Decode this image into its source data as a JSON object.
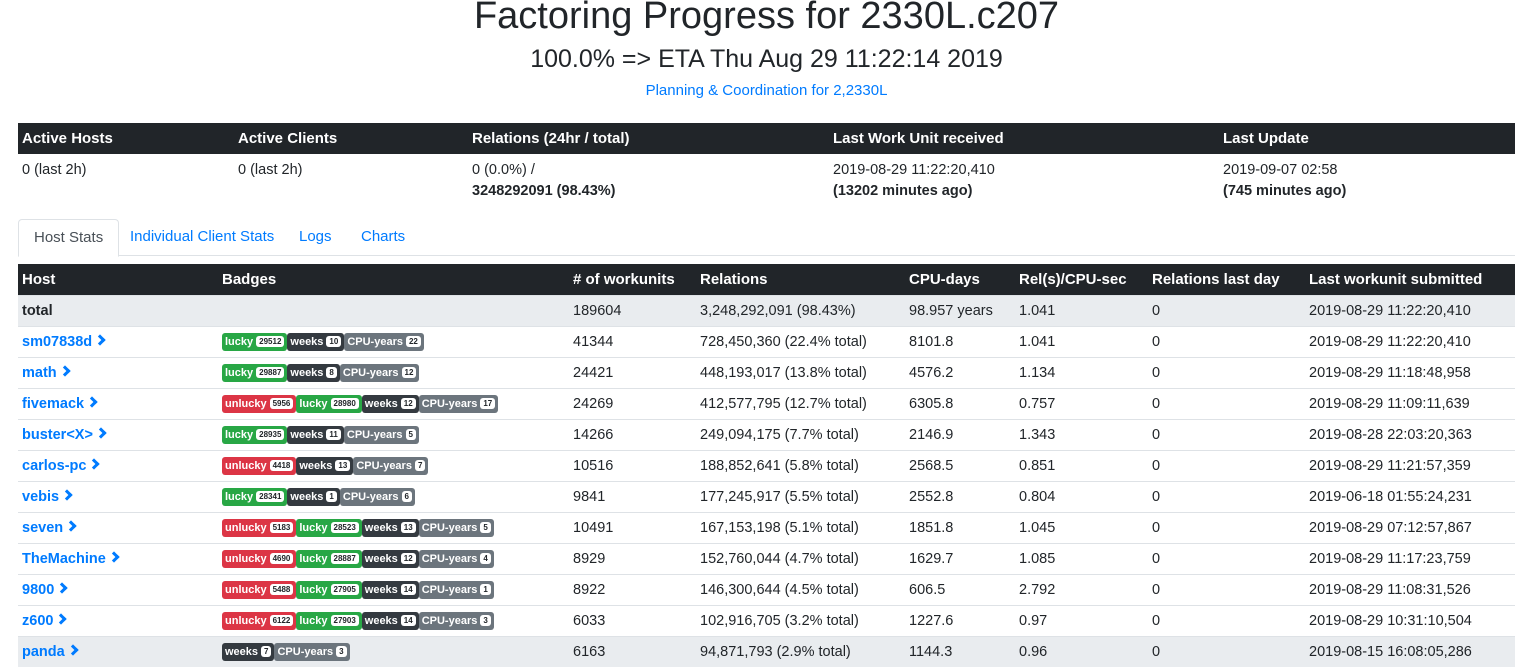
{
  "header": {
    "title": "Factoring Progress for 2330L.c207",
    "subtitle": "100.0% => ETA Thu Aug 29 11:22:14 2019",
    "link": "Planning & Coordination for 2,2330L"
  },
  "summary": {
    "headers": [
      "Active Hosts",
      "Active Clients",
      "Relations (24hr / total)",
      "Last Work Unit received",
      "Last Update"
    ],
    "active_hosts": "0 (last 2h)",
    "active_clients": "0 (last 2h)",
    "relations_24h": "0 (0.0%) /",
    "relations_total": "3248292091 (98.43%)",
    "last_wu": "2019-08-29 11:22:20,410",
    "last_wu_ago": "(13202 minutes ago)",
    "last_update": "2019-09-07 02:58",
    "last_update_ago": "(745 minutes ago)"
  },
  "tabs": [
    "Host Stats",
    "Individual Client Stats",
    "Logs",
    "Charts"
  ],
  "table": {
    "headers": [
      "Host",
      "Badges",
      "# of workunits",
      "Relations",
      "CPU-days",
      "Rel(s)/CPU-sec",
      "Relations last day",
      "Last workunit submitted"
    ],
    "total": {
      "host": "total",
      "workunits": "189604",
      "relations": "3,248,292,091 (98.43%)",
      "cpu_days": "98.957 years",
      "rel_cpu": "1.041",
      "last_day": "0",
      "last_submitted": "2019-08-29 11:22:20,410"
    },
    "rows": [
      {
        "host": "sm07838d",
        "badges": [
          {
            "type": "lucky",
            "label": "lucky",
            "count": "29512"
          },
          {
            "type": "weeks",
            "label": "weeks",
            "count": "10"
          },
          {
            "type": "cpu",
            "label": "CPU-years",
            "count": "22"
          }
        ],
        "workunits": "41344",
        "relations": "728,450,360 (22.4% total)",
        "cpu_days": "8101.8",
        "rel_cpu": "1.041",
        "last_day": "0",
        "last_submitted": "2019-08-29 11:22:20,410"
      },
      {
        "host": "math",
        "badges": [
          {
            "type": "lucky",
            "label": "lucky",
            "count": "29887"
          },
          {
            "type": "weeks",
            "label": "weeks",
            "count": "8"
          },
          {
            "type": "cpu",
            "label": "CPU-years",
            "count": "12"
          }
        ],
        "workunits": "24421",
        "relations": "448,193,017 (13.8% total)",
        "cpu_days": "4576.2",
        "rel_cpu": "1.134",
        "last_day": "0",
        "last_submitted": "2019-08-29 11:18:48,958"
      },
      {
        "host": "fivemack",
        "badges": [
          {
            "type": "unlucky",
            "label": "unlucky",
            "count": "5956"
          },
          {
            "type": "lucky",
            "label": "lucky",
            "count": "28980"
          },
          {
            "type": "weeks",
            "label": "weeks",
            "count": "12"
          },
          {
            "type": "cpu",
            "label": "CPU-years",
            "count": "17"
          }
        ],
        "workunits": "24269",
        "relations": "412,577,795 (12.7% total)",
        "cpu_days": "6305.8",
        "rel_cpu": "0.757",
        "last_day": "0",
        "last_submitted": "2019-08-29 11:09:11,639"
      },
      {
        "host": "buster<X>",
        "badges": [
          {
            "type": "lucky",
            "label": "lucky",
            "count": "28935"
          },
          {
            "type": "weeks",
            "label": "weeks",
            "count": "11"
          },
          {
            "type": "cpu",
            "label": "CPU-years",
            "count": "5"
          }
        ],
        "workunits": "14266",
        "relations": "249,094,175 (7.7% total)",
        "cpu_days": "2146.9",
        "rel_cpu": "1.343",
        "last_day": "0",
        "last_submitted": "2019-08-28 22:03:20,363"
      },
      {
        "host": "carlos-pc",
        "badges": [
          {
            "type": "unlucky",
            "label": "unlucky",
            "count": "4418"
          },
          {
            "type": "weeks",
            "label": "weeks",
            "count": "13"
          },
          {
            "type": "cpu",
            "label": "CPU-years",
            "count": "7"
          }
        ],
        "workunits": "10516",
        "relations": "188,852,641 (5.8% total)",
        "cpu_days": "2568.5",
        "rel_cpu": "0.851",
        "last_day": "0",
        "last_submitted": "2019-08-29 11:21:57,359"
      },
      {
        "host": "vebis",
        "badges": [
          {
            "type": "lucky",
            "label": "lucky",
            "count": "28341"
          },
          {
            "type": "weeks",
            "label": "weeks",
            "count": "1"
          },
          {
            "type": "cpu",
            "label": "CPU-years",
            "count": "6"
          }
        ],
        "workunits": "9841",
        "relations": "177,245,917 (5.5% total)",
        "cpu_days": "2552.8",
        "rel_cpu": "0.804",
        "last_day": "0",
        "last_submitted": "2019-06-18 01:55:24,231"
      },
      {
        "host": "seven",
        "badges": [
          {
            "type": "unlucky",
            "label": "unlucky",
            "count": "5183"
          },
          {
            "type": "lucky",
            "label": "lucky",
            "count": "28523"
          },
          {
            "type": "weeks",
            "label": "weeks",
            "count": "13"
          },
          {
            "type": "cpu",
            "label": "CPU-years",
            "count": "5"
          }
        ],
        "workunits": "10491",
        "relations": "167,153,198 (5.1% total)",
        "cpu_days": "1851.8",
        "rel_cpu": "1.045",
        "last_day": "0",
        "last_submitted": "2019-08-29 07:12:57,867"
      },
      {
        "host": "TheMachine",
        "badges": [
          {
            "type": "unlucky",
            "label": "unlucky",
            "count": "4690"
          },
          {
            "type": "lucky",
            "label": "lucky",
            "count": "28887"
          },
          {
            "type": "weeks",
            "label": "weeks",
            "count": "12"
          },
          {
            "type": "cpu",
            "label": "CPU-years",
            "count": "4"
          }
        ],
        "workunits": "8929",
        "relations": "152,760,044 (4.7% total)",
        "cpu_days": "1629.7",
        "rel_cpu": "1.085",
        "last_day": "0",
        "last_submitted": "2019-08-29 11:17:23,759"
      },
      {
        "host": "9800",
        "badges": [
          {
            "type": "unlucky",
            "label": "unlucky",
            "count": "5488"
          },
          {
            "type": "lucky",
            "label": "lucky",
            "count": "27905"
          },
          {
            "type": "weeks",
            "label": "weeks",
            "count": "14"
          },
          {
            "type": "cpu",
            "label": "CPU-years",
            "count": "1"
          }
        ],
        "workunits": "8922",
        "relations": "146,300,644 (4.5% total)",
        "cpu_days": "606.5",
        "rel_cpu": "2.792",
        "last_day": "0",
        "last_submitted": "2019-08-29 11:08:31,526"
      },
      {
        "host": "z600",
        "badges": [
          {
            "type": "unlucky",
            "label": "unlucky",
            "count": "6122"
          },
          {
            "type": "lucky",
            "label": "lucky",
            "count": "27903"
          },
          {
            "type": "weeks",
            "label": "weeks",
            "count": "14"
          },
          {
            "type": "cpu",
            "label": "CPU-years",
            "count": "3"
          }
        ],
        "workunits": "6033",
        "relations": "102,916,705 (3.2% total)",
        "cpu_days": "1227.6",
        "rel_cpu": "0.97",
        "last_day": "0",
        "last_submitted": "2019-08-29 10:31:10,504"
      },
      {
        "host": "panda",
        "badges": [
          {
            "type": "weeks",
            "label": "weeks",
            "count": "7"
          },
          {
            "type": "cpu",
            "label": "CPU-years",
            "count": "3"
          }
        ],
        "workunits": "6163",
        "relations": "94,871,793 (2.9% total)",
        "cpu_days": "1144.3",
        "rel_cpu": "0.96",
        "last_day": "0",
        "last_submitted": "2019-08-15 16:08:05,286"
      }
    ]
  },
  "colors": {
    "dark_header": "#212529",
    "link": "#007bff",
    "badge_lucky": "#28a745",
    "badge_unlucky": "#dc3545",
    "badge_weeks": "#343a40",
    "badge_cpu": "#6c757d"
  }
}
